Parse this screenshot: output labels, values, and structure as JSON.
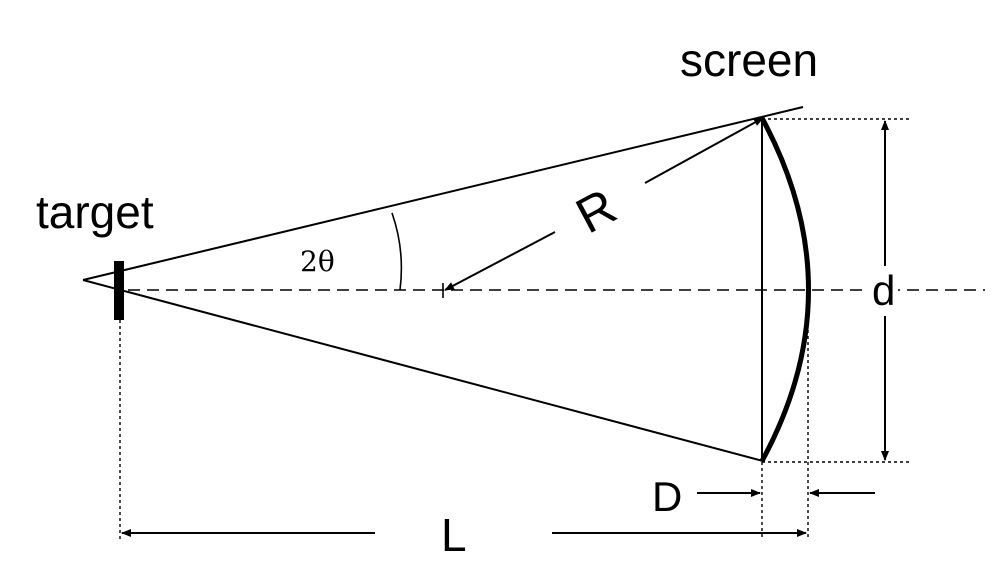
{
  "labels": {
    "screen": "screen",
    "target": "target",
    "angle": "2θ",
    "radius": "R",
    "chord": "d",
    "depth": "D",
    "distance": "L"
  },
  "colors": {
    "line": "#000000",
    "background": "#ffffff"
  }
}
